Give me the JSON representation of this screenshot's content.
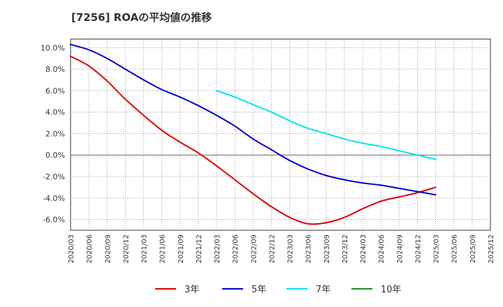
{
  "chart_data": {
    "type": "line",
    "title": "[7256]  ROAの平均値の推移",
    "xlabel": "",
    "ylabel": "",
    "ylim": [
      -7.0,
      10.8
    ],
    "grid": true,
    "legend_position": "bottom",
    "y_ticks": [
      -6,
      -4,
      -2,
      0,
      2,
      4,
      6,
      8,
      10
    ],
    "y_tick_labels": [
      "-6.0%",
      "-4.0%",
      "-2.0%",
      "0.0%",
      "2.0%",
      "4.0%",
      "6.0%",
      "8.0%",
      "10.0%"
    ],
    "categories": [
      "2020/03",
      "2020/06",
      "2020/09",
      "2020/12",
      "2021/03",
      "2021/06",
      "2021/09",
      "2021/12",
      "2022/03",
      "2022/06",
      "2022/09",
      "2022/12",
      "2023/03",
      "2023/06",
      "2023/09",
      "2023/12",
      "2024/03",
      "2024/06",
      "2024/09",
      "2024/12",
      "2025/03",
      "2025/06",
      "2025/09",
      "2025/12"
    ],
    "series": [
      {
        "name": "3年",
        "color": "#dd0000",
        "values": [
          9.2,
          8.3,
          6.9,
          5.2,
          3.7,
          2.3,
          1.2,
          0.2,
          -1.0,
          -2.3,
          -3.6,
          -4.8,
          -5.8,
          -6.4,
          -6.3,
          -5.8,
          -5.0,
          -4.3,
          -3.9,
          -3.5,
          -3.0,
          null,
          null,
          null
        ]
      },
      {
        "name": "5年",
        "color": "#0000cc",
        "values": [
          10.3,
          9.8,
          9.0,
          8.0,
          7.0,
          6.1,
          5.4,
          4.6,
          3.7,
          2.7,
          1.5,
          0.5,
          -0.5,
          -1.3,
          -1.9,
          -2.3,
          -2.6,
          -2.8,
          -3.1,
          -3.4,
          -3.7,
          null,
          null,
          null
        ]
      },
      {
        "name": "7年",
        "color": "#00e5ee",
        "values": [
          null,
          null,
          null,
          null,
          null,
          null,
          null,
          null,
          6.0,
          5.4,
          4.7,
          4.0,
          3.2,
          2.5,
          2.0,
          1.5,
          1.1,
          0.8,
          0.4,
          0.0,
          -0.4,
          null,
          null,
          null
        ]
      },
      {
        "name": "10年",
        "color": "#228b22",
        "values": [
          null,
          null,
          null,
          null,
          null,
          null,
          null,
          null,
          null,
          null,
          null,
          null,
          null,
          null,
          null,
          null,
          null,
          null,
          null,
          null,
          null,
          null,
          null,
          null
        ]
      }
    ]
  }
}
